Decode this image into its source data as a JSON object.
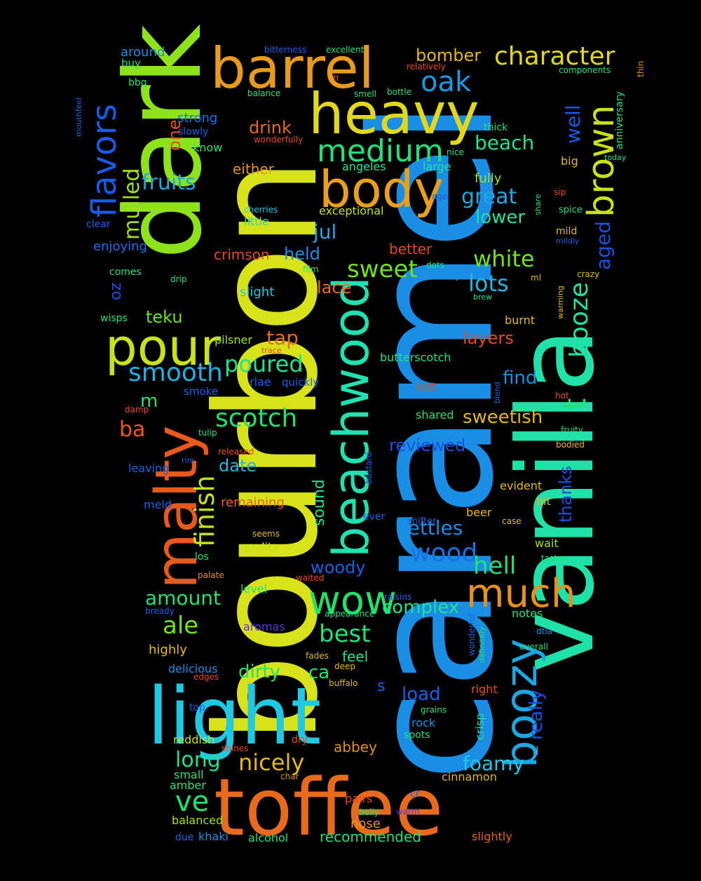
{
  "words": [
    {
      "text": "caramel",
      "color": "#1a8de4"
    },
    {
      "text": "bourbon",
      "color": "#d8e21a"
    },
    {
      "text": "vanilla",
      "color": "#20e2a8"
    },
    {
      "text": "toffee",
      "color": "#e86a1c"
    },
    {
      "text": "dark",
      "color": "#8ee21a"
    },
    {
      "text": "light",
      "color": "#20c8e2"
    },
    {
      "text": "barrel",
      "color": "#e89a1c"
    },
    {
      "text": "heavy",
      "color": "#e2d81a"
    },
    {
      "text": "malty",
      "color": "#e85a1c"
    },
    {
      "text": "body",
      "color": "#e8a01c"
    },
    {
      "text": "pour",
      "color": "#c8e21a"
    },
    {
      "text": "beachwood",
      "color": "#20e2b0"
    },
    {
      "text": "boozy",
      "color": "#1aa8e4"
    },
    {
      "text": "brown",
      "color": "#c8e21a"
    },
    {
      "text": "wow",
      "color": "#20e26a"
    },
    {
      "text": "much",
      "color": "#e8901c"
    },
    {
      "text": "medium",
      "color": "#20e278"
    },
    {
      "text": "flavors",
      "color": "#1a5ae4"
    },
    {
      "text": "character",
      "color": "#e2d81a"
    },
    {
      "text": "oak",
      "color": "#1a9ae4"
    },
    {
      "text": "smooth",
      "color": "#20b0e2"
    },
    {
      "text": "scotch",
      "color": "#20e270"
    },
    {
      "text": "light",
      "color": "#20c8e2"
    },
    {
      "text": "finish",
      "color": "#c0e21a"
    },
    {
      "text": "t",
      "color": "#20e270"
    },
    {
      "text": "booze",
      "color": "#20e2a0"
    },
    {
      "text": "wood",
      "color": "#1a70e4"
    },
    {
      "text": "hell",
      "color": "#20e278"
    },
    {
      "text": "sweet",
      "color": "#70e21a"
    },
    {
      "text": "white",
      "color": "#70e21a"
    },
    {
      "text": "lots",
      "color": "#20b8e2"
    },
    {
      "text": "poured",
      "color": "#20e290"
    },
    {
      "text": "nicely",
      "color": "#e2b81a"
    },
    {
      "text": "ale",
      "color": "#70e21a"
    },
    {
      "text": "ve",
      "color": "#20e270"
    },
    {
      "text": "best",
      "color": "#20e278"
    },
    {
      "text": "long",
      "color": "#20e290"
    },
    {
      "text": "foamy",
      "color": "#20c8e2"
    },
    {
      "text": "settles",
      "color": "#1a90e4"
    },
    {
      "text": "fruits",
      "color": "#20a8e2"
    },
    {
      "text": "mulled",
      "color": "#a0e21a"
    },
    {
      "text": "great",
      "color": "#20a8e2"
    },
    {
      "text": "beach",
      "color": "#20e290"
    },
    {
      "text": "well",
      "color": "#1a5ae4"
    },
    {
      "text": "aged",
      "color": "#1a50e4"
    },
    {
      "text": "really",
      "color": "#1a50e4"
    },
    {
      "text": "amount",
      "color": "#20e270"
    },
    {
      "text": "complex",
      "color": "#20e290"
    },
    {
      "text": "sweetish",
      "color": "#e2b81a"
    },
    {
      "text": "date",
      "color": "#20b8e2"
    },
    {
      "text": "dirty",
      "color": "#20e270"
    },
    {
      "text": "ca",
      "color": "#20e270"
    },
    {
      "text": "woody",
      "color": "#1a60e4"
    },
    {
      "text": "jul",
      "color": "#20a8e2"
    },
    {
      "text": "bomber",
      "color": "#e2b81a"
    },
    {
      "text": "drink",
      "color": "#e86a1c"
    },
    {
      "text": "lower",
      "color": "#20e2a0"
    },
    {
      "text": "tap",
      "color": "#e86a1c"
    },
    {
      "text": "teku",
      "color": "#70e21a"
    },
    {
      "text": "held",
      "color": "#1a90e4"
    },
    {
      "text": "find",
      "color": "#1a90e4"
    },
    {
      "text": "layers",
      "color": "#e84a1c"
    },
    {
      "text": "load",
      "color": "#1a60e4"
    },
    {
      "text": "thanks",
      "color": "#1a50e4"
    },
    {
      "text": "reviewed",
      "color": "#1a50e4"
    },
    {
      "text": "ba",
      "color": "#e85a1c"
    },
    {
      "text": "m",
      "color": "#20e270"
    },
    {
      "text": "oz",
      "color": "#1a50e4"
    },
    {
      "text": "one",
      "color": "#e8501c"
    },
    {
      "text": "sound",
      "color": "#20e290"
    },
    {
      "text": "lace",
      "color": "#e8701c"
    },
    {
      "text": "crimson",
      "color": "#e84a1c"
    },
    {
      "text": "better",
      "color": "#e84a1c"
    },
    {
      "text": "either",
      "color": "#e2981a"
    },
    {
      "text": "fully",
      "color": "#a0e21a"
    },
    {
      "text": "exceptional",
      "color": "#c0e21a"
    },
    {
      "text": "remaining",
      "color": "#e8601c"
    },
    {
      "text": "enjoying",
      "color": "#1a70e4"
    },
    {
      "text": "strong",
      "color": "#1a70e4"
    },
    {
      "text": "around",
      "color": "#1a90e4"
    },
    {
      "text": "feel",
      "color": "#20e290"
    },
    {
      "text": "crisp",
      "color": "#20e290"
    },
    {
      "text": "highly",
      "color": "#e2b81a"
    },
    {
      "text": "delicious",
      "color": "#1a90e4"
    },
    {
      "text": "reddish",
      "color": "#c0e21a"
    },
    {
      "text": "abbey",
      "color": "#e2901a"
    },
    {
      "text": "small",
      "color": "#20e278"
    },
    {
      "text": "amber",
      "color": "#20e278"
    },
    {
      "text": "balanced",
      "color": "#a0e21a"
    },
    {
      "text": "khaki",
      "color": "#1a90e4"
    },
    {
      "text": "alcohol",
      "color": "#20e278"
    },
    {
      "text": "recommended",
      "color": "#20e278"
    },
    {
      "text": "slightly",
      "color": "#e8601c"
    },
    {
      "text": "cinnamon",
      "color": "#e2b81a"
    },
    {
      "text": "nose",
      "color": "#e2981a"
    },
    {
      "text": "pairs",
      "color": "#e84a1c"
    },
    {
      "text": "notes",
      "color": "#20e278"
    },
    {
      "text": "evident",
      "color": "#e2b81a"
    },
    {
      "text": "bit",
      "color": "#e2b81a"
    },
    {
      "text": "beer",
      "color": "#e2b81a"
    },
    {
      "text": "wait",
      "color": "#a0e21a"
    },
    {
      "text": "burnt",
      "color": "#e2b81a"
    },
    {
      "text": "butterscotch",
      "color": "#20e278"
    },
    {
      "text": "lost",
      "color": "#e84a1c"
    },
    {
      "text": "shared",
      "color": "#20e278"
    },
    {
      "text": "angeles",
      "color": "#20e2a0"
    },
    {
      "text": "large",
      "color": "#20e2a0"
    },
    {
      "text": "little",
      "color": "#20e2a0"
    },
    {
      "text": "slight",
      "color": "#20c8e2"
    },
    {
      "text": "pilsner",
      "color": "#a0e21a"
    },
    {
      "text": "rlae",
      "color": "#1a60e4"
    },
    {
      "text": "quickly",
      "color": "#1a60e4"
    },
    {
      "text": "smoke",
      "color": "#1a60e4"
    },
    {
      "text": "leaving",
      "color": "#1a60e4"
    },
    {
      "text": "meld",
      "color": "#1a60e4"
    },
    {
      "text": "quality",
      "color": "#c0e21a"
    },
    {
      "text": "level",
      "color": "#20e278"
    },
    {
      "text": "aromas",
      "color": "#5a30e4"
    },
    {
      "text": "bbq",
      "color": "#20e278"
    },
    {
      "text": "buy",
      "color": "#20e278"
    },
    {
      "text": "wisps",
      "color": "#20e278"
    },
    {
      "text": "comes",
      "color": "#20e278"
    },
    {
      "text": "clear",
      "color": "#1a60e4"
    },
    {
      "text": "know",
      "color": "#20e278"
    },
    {
      "text": "slowly",
      "color": "#1a60e4"
    },
    {
      "text": "thick",
      "color": "#20e278"
    },
    {
      "text": "big",
      "color": "#e2b81a"
    },
    {
      "text": "mild",
      "color": "#e2b81a"
    },
    {
      "text": "spice",
      "color": "#20e278"
    },
    {
      "text": "anniversary",
      "color": "#20e278"
    },
    {
      "text": "components",
      "color": "#20e278"
    },
    {
      "text": "excellent",
      "color": "#20e278"
    },
    {
      "text": "bitterness",
      "color": "#1a60e4"
    },
    {
      "text": "balance",
      "color": "#20e278"
    },
    {
      "text": "smell",
      "color": "#20e278"
    },
    {
      "text": "bottle",
      "color": "#20e278"
    },
    {
      "text": "relatively",
      "color": "#e84a1c"
    },
    {
      "text": "n",
      "color": "#e84a1c"
    },
    {
      "text": "f",
      "color": "#a0e21a"
    },
    {
      "text": "thin",
      "color": "#e2901a"
    },
    {
      "text": "today",
      "color": "#20e278"
    },
    {
      "text": "mouthfeel",
      "color": "#1a60e4"
    },
    {
      "text": "wonderfully",
      "color": "#e84a1c"
    },
    {
      "text": "nice",
      "color": "#20e278"
    },
    {
      "text": "cherries",
      "color": "#20c8e2"
    },
    {
      "text": "age",
      "color": "#1a60e4"
    },
    {
      "text": "share",
      "color": "#20e278"
    },
    {
      "text": "sip",
      "color": "#e84a1c"
    },
    {
      "text": "mildly",
      "color": "#1a60e4"
    },
    {
      "text": "crazy",
      "color": "#e2b81a"
    },
    {
      "text": "ml",
      "color": "#e2b81a"
    },
    {
      "text": "warming",
      "color": "#e2b81a"
    },
    {
      "text": "brew",
      "color": "#20e278"
    },
    {
      "text": "dots",
      "color": "#20e278"
    },
    {
      "text": "creamy",
      "color": "#1a90e4"
    },
    {
      "text": "film",
      "color": "#20e278"
    },
    {
      "text": "drip",
      "color": "#20e278"
    },
    {
      "text": "trace",
      "color": "#e84a1c"
    },
    {
      "text": "damp",
      "color": "#e84a1c"
    },
    {
      "text": "tulip",
      "color": "#20e278"
    },
    {
      "text": "released",
      "color": "#e84a1c"
    },
    {
      "text": "rim",
      "color": "#1a60e4"
    },
    {
      "text": "blend",
      "color": "#1a60e4"
    },
    {
      "text": "hot",
      "color": "#e84a1c"
    },
    {
      "text": "fruity",
      "color": "#20e278"
    },
    {
      "text": "bodied",
      "color": "#e2b81a"
    },
    {
      "text": "bastard",
      "color": "#1a60e4"
    },
    {
      "text": "ever",
      "color": "#1a60e4"
    },
    {
      "text": "case",
      "color": "#e2b81a"
    },
    {
      "text": "snifter",
      "color": "#1a60e4"
    },
    {
      "text": "presence",
      "color": "#1a90e4"
    },
    {
      "text": "seems",
      "color": "#e2b81a"
    },
    {
      "text": "los",
      "color": "#20e278"
    },
    {
      "text": "palate",
      "color": "#e2901a"
    },
    {
      "text": "waited",
      "color": "#e84a1c"
    },
    {
      "text": "tastes",
      "color": "#20e278"
    },
    {
      "text": "raisins",
      "color": "#1a60e4"
    },
    {
      "text": "appearance",
      "color": "#20e278"
    },
    {
      "text": "bready",
      "color": "#1a60e4"
    },
    {
      "text": "wonderful",
      "color": "#1a60e4"
    },
    {
      "text": "definitely",
      "color": "#20e278"
    },
    {
      "text": "dtla",
      "color": "#1a90e4"
    },
    {
      "text": "overall",
      "color": "#20e278"
    },
    {
      "text": "fades",
      "color": "#e2b81a"
    },
    {
      "text": "deep",
      "color": "#e2b81a"
    },
    {
      "text": "edges",
      "color": "#e84a1c"
    },
    {
      "text": "buffalo",
      "color": "#e2b81a"
    },
    {
      "text": "s",
      "color": "#1a60e4"
    },
    {
      "text": "right",
      "color": "#e84a1c"
    },
    {
      "text": "l",
      "color": "#20c8e2"
    },
    {
      "text": "top",
      "color": "#1a60e4"
    },
    {
      "text": "grains",
      "color": "#20e278"
    },
    {
      "text": "rock",
      "color": "#1a90e4"
    },
    {
      "text": "spots",
      "color": "#20e278"
    },
    {
      "text": "dry",
      "color": "#e84a1c"
    },
    {
      "text": "shines",
      "color": "#e84a1c"
    },
    {
      "text": "char",
      "color": "#e2901a"
    },
    {
      "text": "cc",
      "color": "#1a60e4"
    },
    {
      "text": "belly",
      "color": "#20e278"
    },
    {
      "text": "warm",
      "color": "#5a30e4"
    },
    {
      "text": "due",
      "color": "#1a60e4"
    }
  ]
}
